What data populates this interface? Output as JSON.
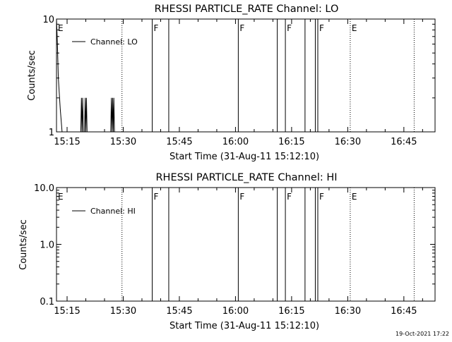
{
  "timestamp": "19-Oct-2021 17:22",
  "chart_data": [
    {
      "type": "line",
      "title": "RHESSI PARTICLE_RATE Channel: LO",
      "xlabel": "Start Time (31-Aug-11 15:12:10)",
      "ylabel": "Counts/sec",
      "x_unit": "time of day (HH:MM)",
      "xlim": [
        "15:12:10",
        "16:53:20"
      ],
      "x_ticks": [
        "15:15",
        "15:30",
        "15:45",
        "16:00",
        "16:15",
        "16:30",
        "16:45"
      ],
      "y_scale": "log",
      "ylim": [
        1,
        10
      ],
      "y_ticks": [
        "1",
        "10"
      ],
      "legend": {
        "placement": "top-left",
        "entries": [
          "Channel: LO"
        ]
      },
      "series": [
        {
          "name": "Channel: LO",
          "points": [
            [
              "15:12:10",
              10
            ],
            [
              "15:12:25",
              6
            ],
            [
              "15:12:40",
              3
            ],
            [
              "15:13:10",
              1.6
            ],
            [
              "15:13:40",
              1
            ],
            [
              "15:18:40",
              1
            ],
            [
              "15:18:50",
              2
            ],
            [
              "15:19:00",
              1
            ],
            [
              "15:19:10",
              2
            ],
            [
              "15:19:20",
              1
            ],
            [
              "15:19:40",
              1
            ],
            [
              "15:19:50",
              2
            ],
            [
              "15:20:00",
              1
            ],
            [
              "15:20:10",
              2
            ],
            [
              "15:20:20",
              1
            ],
            [
              "15:26:40",
              1
            ],
            [
              "15:26:50",
              2
            ],
            [
              "15:27:00",
              1
            ],
            [
              "15:27:10",
              2
            ],
            [
              "15:27:20",
              1
            ],
            [
              "15:27:30",
              2
            ],
            [
              "15:27:40",
              1
            ]
          ]
        }
      ],
      "flag_lines": [
        {
          "time": "15:12:10",
          "style": "solid",
          "label": "E"
        },
        {
          "time": "15:29:40",
          "style": "dotted",
          "label": ""
        },
        {
          "time": "15:37:45",
          "style": "solid",
          "label": "F"
        },
        {
          "time": "15:42:10",
          "style": "solid",
          "label": ""
        },
        {
          "time": "16:00:45",
          "style": "solid",
          "label": "F"
        },
        {
          "time": "16:11:10",
          "style": "solid",
          "label": ""
        },
        {
          "time": "16:13:20",
          "style": "solid",
          "label": "F"
        },
        {
          "time": "16:18:35",
          "style": "solid",
          "label": ""
        },
        {
          "time": "16:21:20",
          "style": "solid",
          "label": ""
        },
        {
          "time": "16:22:00",
          "style": "solid",
          "label": "F"
        },
        {
          "time": "16:30:40",
          "style": "dotted",
          "label": "E"
        },
        {
          "time": "16:47:45",
          "style": "dotted",
          "label": ""
        }
      ]
    },
    {
      "type": "line",
      "title": "RHESSI PARTICLE_RATE Channel: HI",
      "xlabel": "Start Time (31-Aug-11 15:12:10)",
      "ylabel": "Counts/sec",
      "x_unit": "time of day (HH:MM)",
      "xlim": [
        "15:12:10",
        "16:53:20"
      ],
      "x_ticks": [
        "15:15",
        "15:30",
        "15:45",
        "16:00",
        "16:15",
        "16:30",
        "16:45"
      ],
      "y_scale": "log",
      "ylim": [
        0.1,
        10
      ],
      "y_ticks": [
        "0.1",
        "1.0",
        "10.0"
      ],
      "legend": {
        "placement": "top-left",
        "entries": [
          "Channel: HI"
        ]
      },
      "series": [
        {
          "name": "Channel: HI",
          "points": []
        }
      ],
      "flag_lines": [
        {
          "time": "15:12:10",
          "style": "solid",
          "label": "E"
        },
        {
          "time": "15:29:40",
          "style": "dotted",
          "label": ""
        },
        {
          "time": "15:37:45",
          "style": "solid",
          "label": "F"
        },
        {
          "time": "15:42:10",
          "style": "solid",
          "label": ""
        },
        {
          "time": "16:00:45",
          "style": "solid",
          "label": "F"
        },
        {
          "time": "16:11:10",
          "style": "solid",
          "label": ""
        },
        {
          "time": "16:13:20",
          "style": "solid",
          "label": "F"
        },
        {
          "time": "16:18:35",
          "style": "solid",
          "label": ""
        },
        {
          "time": "16:21:20",
          "style": "solid",
          "label": ""
        },
        {
          "time": "16:22:00",
          "style": "solid",
          "label": "F"
        },
        {
          "time": "16:30:40",
          "style": "dotted",
          "label": "E"
        },
        {
          "time": "16:47:45",
          "style": "dotted",
          "label": ""
        }
      ]
    }
  ]
}
